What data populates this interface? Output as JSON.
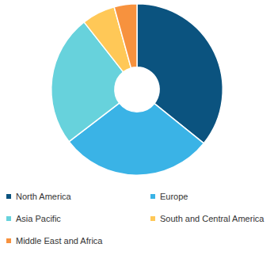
{
  "chart_data": {
    "type": "doughnut",
    "categories": [
      "North America",
      "Europe",
      "Asia Pacific",
      "South and Central America",
      "Middle East and Africa"
    ],
    "values": [
      35.8,
      28.8,
      24.8,
      6.3,
      4.3
    ],
    "colors": [
      "#0b537f",
      "#3ab3e6",
      "#67d2dc",
      "#ffc857",
      "#f7923e"
    ],
    "legend": "bottom"
  }
}
